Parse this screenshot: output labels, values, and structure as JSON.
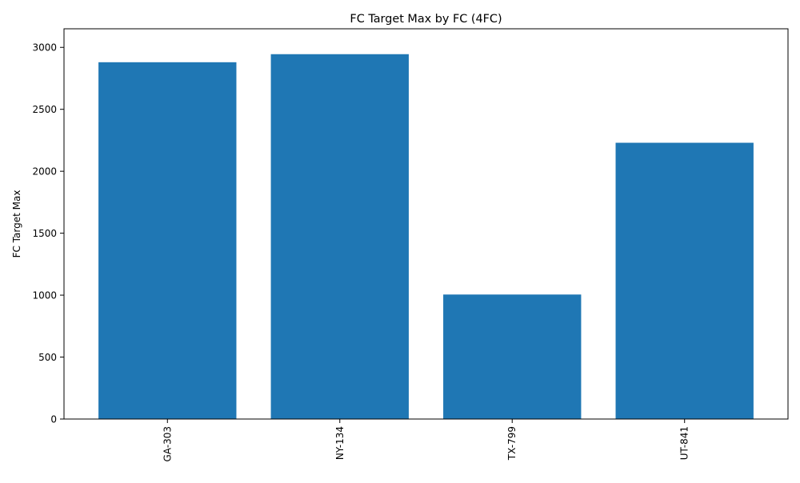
{
  "chart_data": {
    "type": "bar",
    "title": "FC Target Max by FC (4FC)",
    "xlabel": "",
    "ylabel": "FC Target Max",
    "categories": [
      "GA-303",
      "NY-134",
      "TX-799",
      "UT-841"
    ],
    "values": [
      2880,
      2945,
      1005,
      2230
    ],
    "ylim": [
      0,
      3150
    ],
    "yticks": [
      0,
      500,
      1000,
      1500,
      2000,
      2500,
      3000
    ],
    "grid": false,
    "legend": "none",
    "bar_color": "#1f77b4"
  }
}
